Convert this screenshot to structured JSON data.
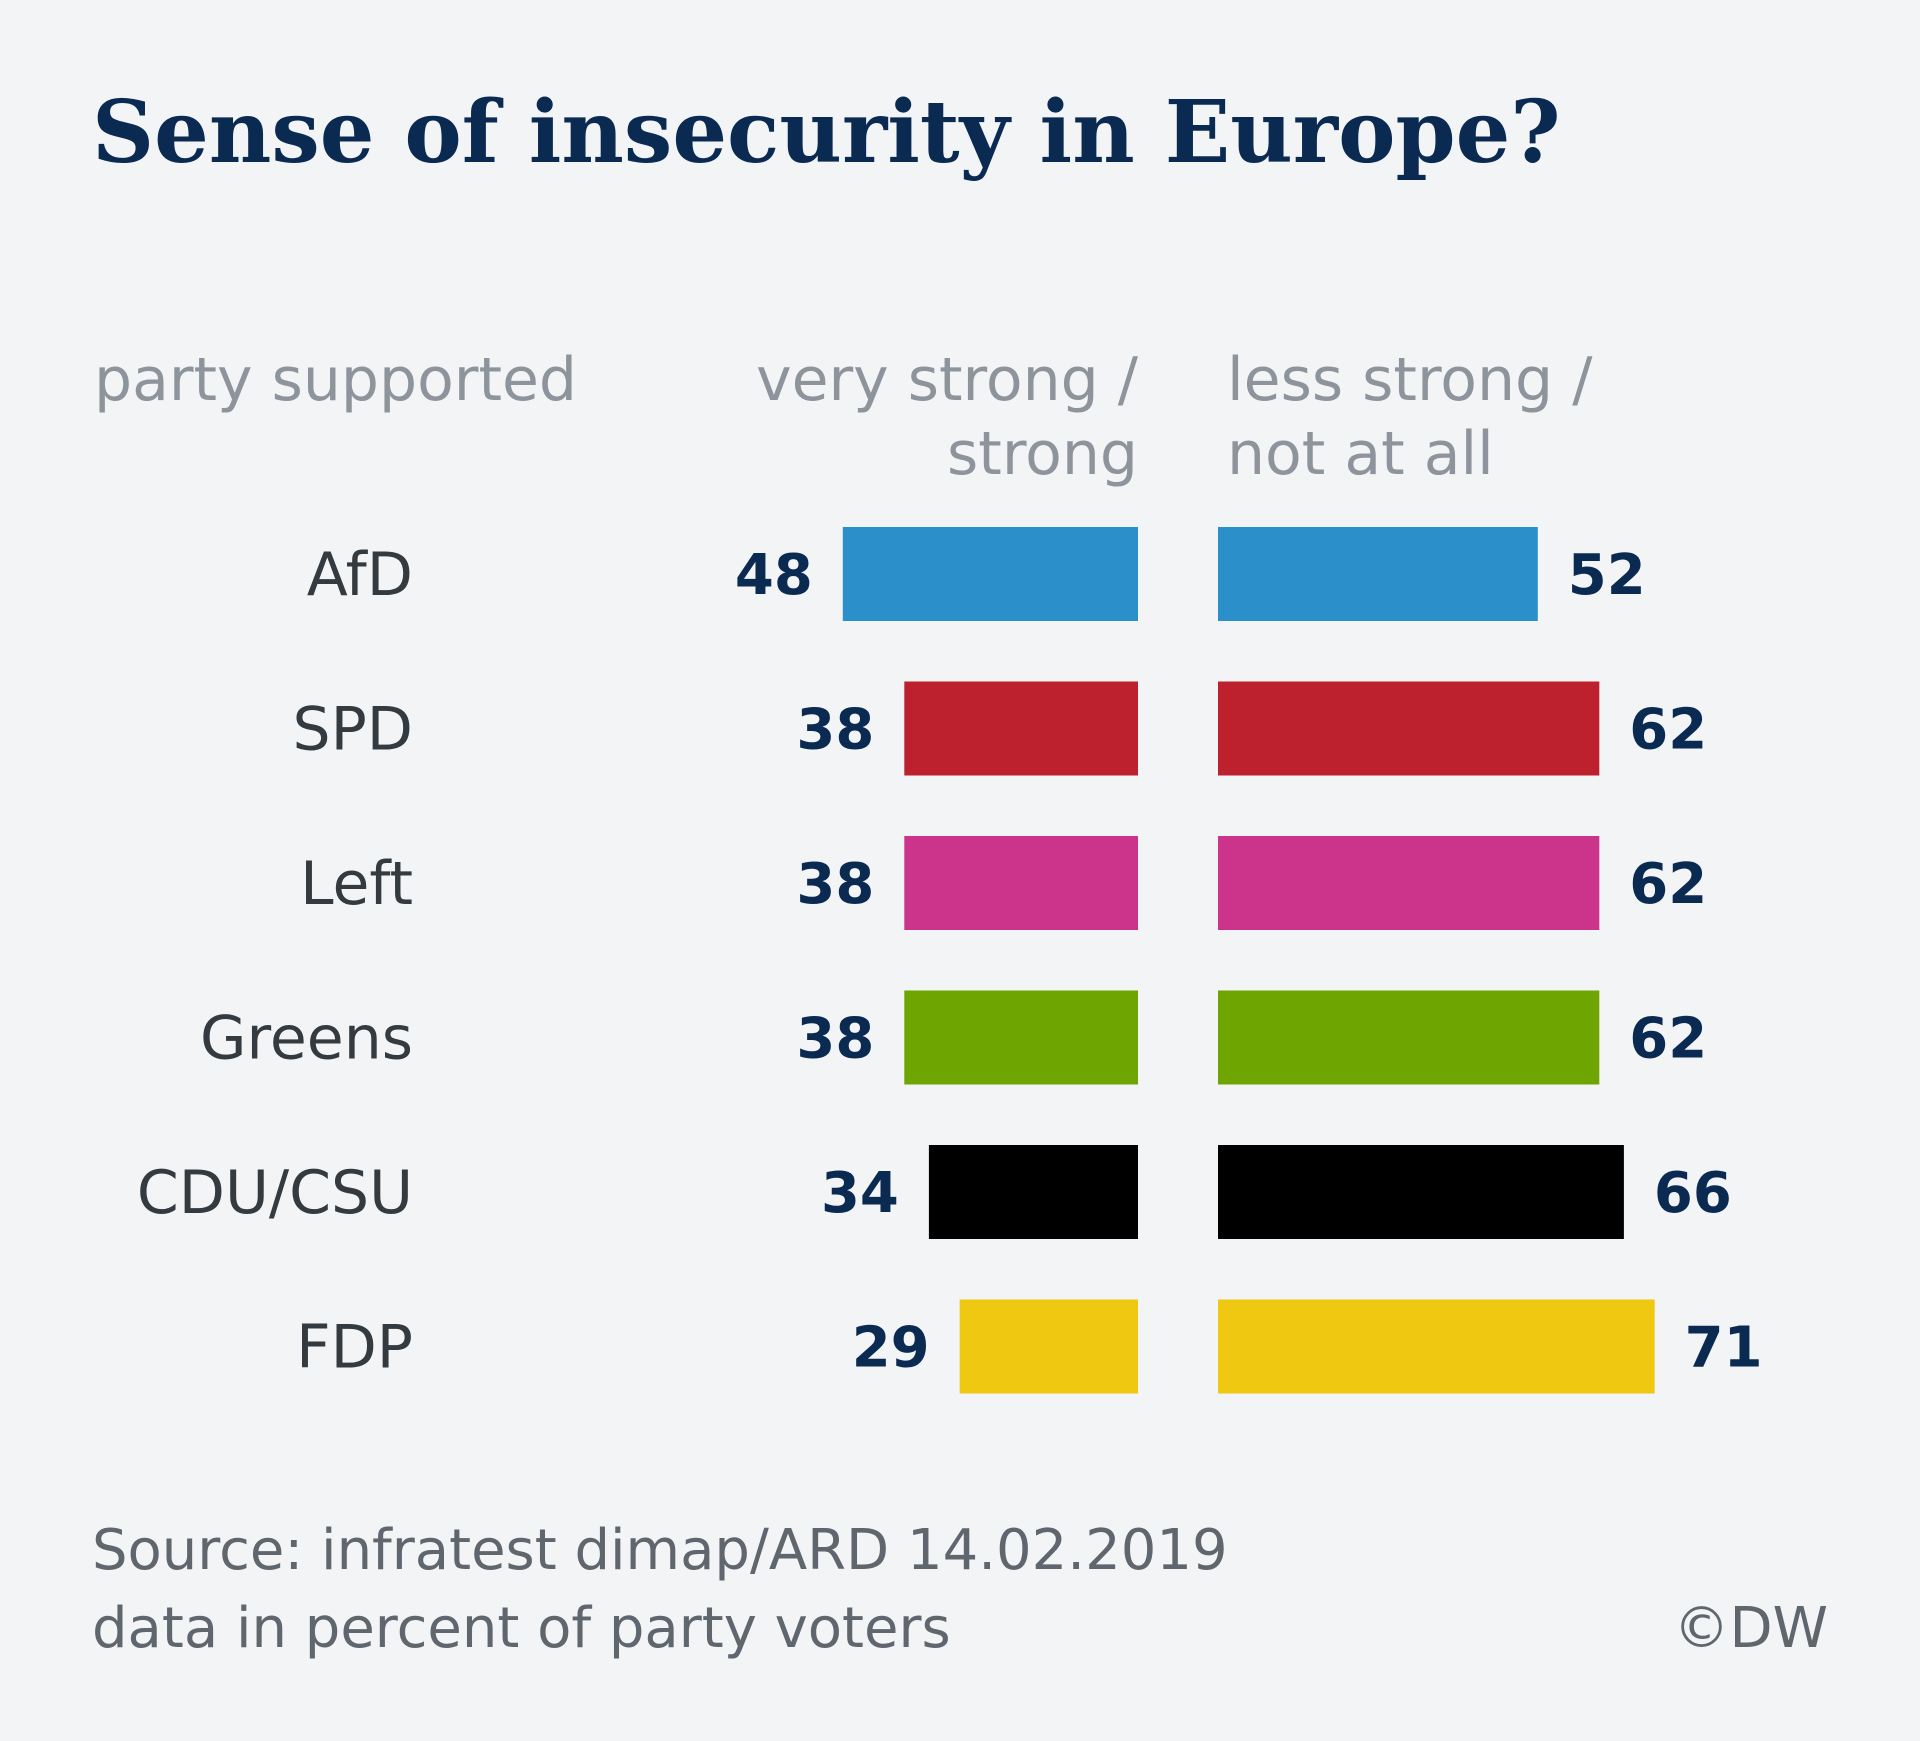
{
  "title": "Sense of insecurity in Europe?",
  "columns": {
    "party": "party supported",
    "strong_line1": "very strong /",
    "strong_line2": "strong",
    "less_line1": "less strong /",
    "less_line2": "not at all"
  },
  "footer": {
    "source_line1": "Source: infratest dimap/ARD 14.02.2019",
    "source_line2": "data in percent of party voters",
    "copyright": "©DW"
  },
  "chart_data": {
    "type": "bar",
    "orientation": "horizontal-diverging",
    "categories": [
      "AfD",
      "SPD",
      "Left",
      "Greens",
      "CDU/CSU",
      "FDP"
    ],
    "series": [
      {
        "name": "very strong / strong",
        "values": [
          48,
          38,
          38,
          38,
          34,
          29
        ]
      },
      {
        "name": "less strong / not at all",
        "values": [
          52,
          62,
          62,
          62,
          66,
          71
        ]
      }
    ],
    "colors": [
      "#2b8fc9",
      "#bd212d",
      "#cc348c",
      "#6fa500",
      "#000000",
      "#efc812"
    ],
    "unit": "percent",
    "xlim": [
      0,
      100
    ],
    "grid": false,
    "legend": "column headers"
  }
}
